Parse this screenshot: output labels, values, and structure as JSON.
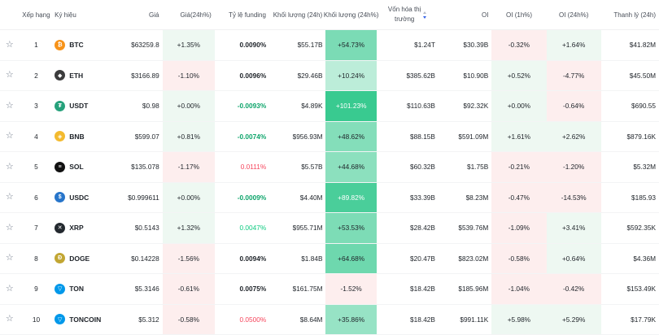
{
  "headers": {
    "rank": "Xếp hạng",
    "symbol": "Ký hiệu",
    "price": "Giá",
    "change24h": "Giá(24h%)",
    "funding": "Tỷ lệ funding",
    "volume24h": "Khối lượng (24h)",
    "volume_change": "Khối lượng (24h%)",
    "market_cap_line1": "Vốn hóa thị",
    "market_cap_line2": "trường",
    "oi": "OI",
    "oi_1h": "OI (1h%)",
    "oi_24h": "OI (24h%)",
    "liquidation": "Thanh lý (24h)"
  },
  "colors": {
    "green_text": "#0ecb81",
    "red_text": "#f6465d",
    "accent_blue": "#3563e9"
  },
  "rows": [
    {
      "rank": "1",
      "symbol": "BTC",
      "icon": "bitcoin-icon",
      "glyph": "₿",
      "icon_color": "#f7931a",
      "price": "$63259.8",
      "change": "+1.35%",
      "change_dir": "up",
      "funding": "0.0090%",
      "funding_style": "dark",
      "volume": "$55.17B",
      "volchg": "+54.73%",
      "volchg_dir": "up",
      "volchg_level": 0.55,
      "mcap": "$1.24T",
      "oi": "$30.39B",
      "oi1h": "-0.32%",
      "oi1h_dir": "down",
      "oi24": "+1.64%",
      "oi24_dir": "up",
      "liq": "$41.82M"
    },
    {
      "rank": "2",
      "symbol": "ETH",
      "icon": "ethereum-icon",
      "glyph": "◆",
      "icon_color": "#3c3c3d",
      "price": "$3166.89",
      "change": "-1.10%",
      "change_dir": "down",
      "funding": "0.0096%",
      "funding_style": "dark",
      "volume": "$29.46B",
      "volchg": "+10.24%",
      "volchg_dir": "up",
      "volchg_level": 0.1,
      "mcap": "$385.62B",
      "oi": "$10.90B",
      "oi1h": "+0.52%",
      "oi1h_dir": "up",
      "oi24": "-4.77%",
      "oi24_dir": "down",
      "liq": "$45.50M"
    },
    {
      "rank": "3",
      "symbol": "USDT",
      "icon": "tether-icon",
      "glyph": "₮",
      "icon_color": "#26a17b",
      "price": "$0.98",
      "change": "+0.00%",
      "change_dir": "up",
      "funding": "-0.0093%",
      "funding_style": "greenbold",
      "volume": "$4.89K",
      "volchg": "+101.23%",
      "volchg_dir": "up",
      "volchg_level": 1.0,
      "mcap": "$110.63B",
      "oi": "$92.32K",
      "oi1h": "+0.00%",
      "oi1h_dir": "up",
      "oi24": "-0.64%",
      "oi24_dir": "down",
      "liq": "$690.55"
    },
    {
      "rank": "4",
      "symbol": "BNB",
      "icon": "bnb-icon",
      "glyph": "◈",
      "icon_color": "#f3ba2f",
      "price": "$599.07",
      "change": "+0.81%",
      "change_dir": "up",
      "funding": "-0.0074%",
      "funding_style": "greenbold",
      "volume": "$956.93M",
      "volchg": "+48.62%",
      "volchg_dir": "up",
      "volchg_level": 0.48,
      "mcap": "$88.15B",
      "oi": "$591.09M",
      "oi1h": "+1.61%",
      "oi1h_dir": "up",
      "oi24": "+2.62%",
      "oi24_dir": "up",
      "liq": "$879.16K"
    },
    {
      "rank": "5",
      "symbol": "SOL",
      "icon": "solana-icon",
      "glyph": "≡",
      "icon_color": "#111111",
      "price": "$135.078",
      "change": "-1.17%",
      "change_dir": "down",
      "funding": "0.0111%",
      "funding_style": "red",
      "volume": "$5.57B",
      "volchg": "+44.68%",
      "volchg_dir": "up",
      "volchg_level": 0.44,
      "mcap": "$60.32B",
      "oi": "$1.75B",
      "oi1h": "-0.21%",
      "oi1h_dir": "down",
      "oi24": "-1.20%",
      "oi24_dir": "down",
      "liq": "$5.32M"
    },
    {
      "rank": "6",
      "symbol": "USDC",
      "icon": "usdc-icon",
      "glyph": "$",
      "icon_color": "#2775ca",
      "price": "$0.999611",
      "change": "+0.00%",
      "change_dir": "up",
      "funding": "-0.0009%",
      "funding_style": "greenbold",
      "volume": "$4.40M",
      "volchg": "+89.82%",
      "volchg_dir": "up",
      "volchg_level": 0.88,
      "mcap": "$33.39B",
      "oi": "$8.23M",
      "oi1h": "-0.47%",
      "oi1h_dir": "down",
      "oi24": "-14.53%",
      "oi24_dir": "down",
      "liq": "$185.93"
    },
    {
      "rank": "7",
      "symbol": "XRP",
      "icon": "xrp-icon",
      "glyph": "✕",
      "icon_color": "#23292f",
      "price": "$0.5143",
      "change": "+1.32%",
      "change_dir": "up",
      "funding": "0.0047%",
      "funding_style": "green",
      "volume": "$955.71M",
      "volchg": "+53.53%",
      "volchg_dir": "up",
      "volchg_level": 0.53,
      "mcap": "$28.42B",
      "oi": "$539.76M",
      "oi1h": "-1.09%",
      "oi1h_dir": "down",
      "oi24": "+3.41%",
      "oi24_dir": "up",
      "liq": "$592.35K"
    },
    {
      "rank": "8",
      "symbol": "DOGE",
      "icon": "dogecoin-icon",
      "glyph": "Ð",
      "icon_color": "#c2a633",
      "price": "$0.14228",
      "change": "-1.56%",
      "change_dir": "down",
      "funding": "0.0094%",
      "funding_style": "dark",
      "volume": "$1.84B",
      "volchg": "+64.68%",
      "volchg_dir": "up",
      "volchg_level": 0.64,
      "mcap": "$20.47B",
      "oi": "$823.02M",
      "oi1h": "-0.58%",
      "oi1h_dir": "down",
      "oi24": "+0.64%",
      "oi24_dir": "up",
      "liq": "$4.36M"
    },
    {
      "rank": "9",
      "symbol": "TON",
      "icon": "toncoin-icon",
      "glyph": "▽",
      "icon_color": "#0098ea",
      "price": "$5.3146",
      "change": "-0.61%",
      "change_dir": "down",
      "funding": "0.0075%",
      "funding_style": "dark",
      "volume": "$161.75M",
      "volchg": "-1.52%",
      "volchg_dir": "down",
      "volchg_level": 0.1,
      "mcap": "$18.42B",
      "oi": "$185.96M",
      "oi1h": "-1.04%",
      "oi1h_dir": "down",
      "oi24": "-0.42%",
      "oi24_dir": "down",
      "liq": "$153.49K"
    },
    {
      "rank": "10",
      "symbol": "TONCOIN",
      "icon": "toncoin-icon",
      "glyph": "▽",
      "icon_color": "#0098ea",
      "price": "$5.312",
      "change": "-0.58%",
      "change_dir": "down",
      "funding": "0.0500%",
      "funding_style": "red",
      "volume": "$8.64M",
      "volchg": "+35.86%",
      "volchg_dir": "up",
      "volchg_level": 0.35,
      "mcap": "$18.42B",
      "oi": "$991.11K",
      "oi1h": "+5.98%",
      "oi1h_dir": "up",
      "oi24": "+5.29%",
      "oi24_dir": "up",
      "liq": "$17.79K"
    }
  ]
}
